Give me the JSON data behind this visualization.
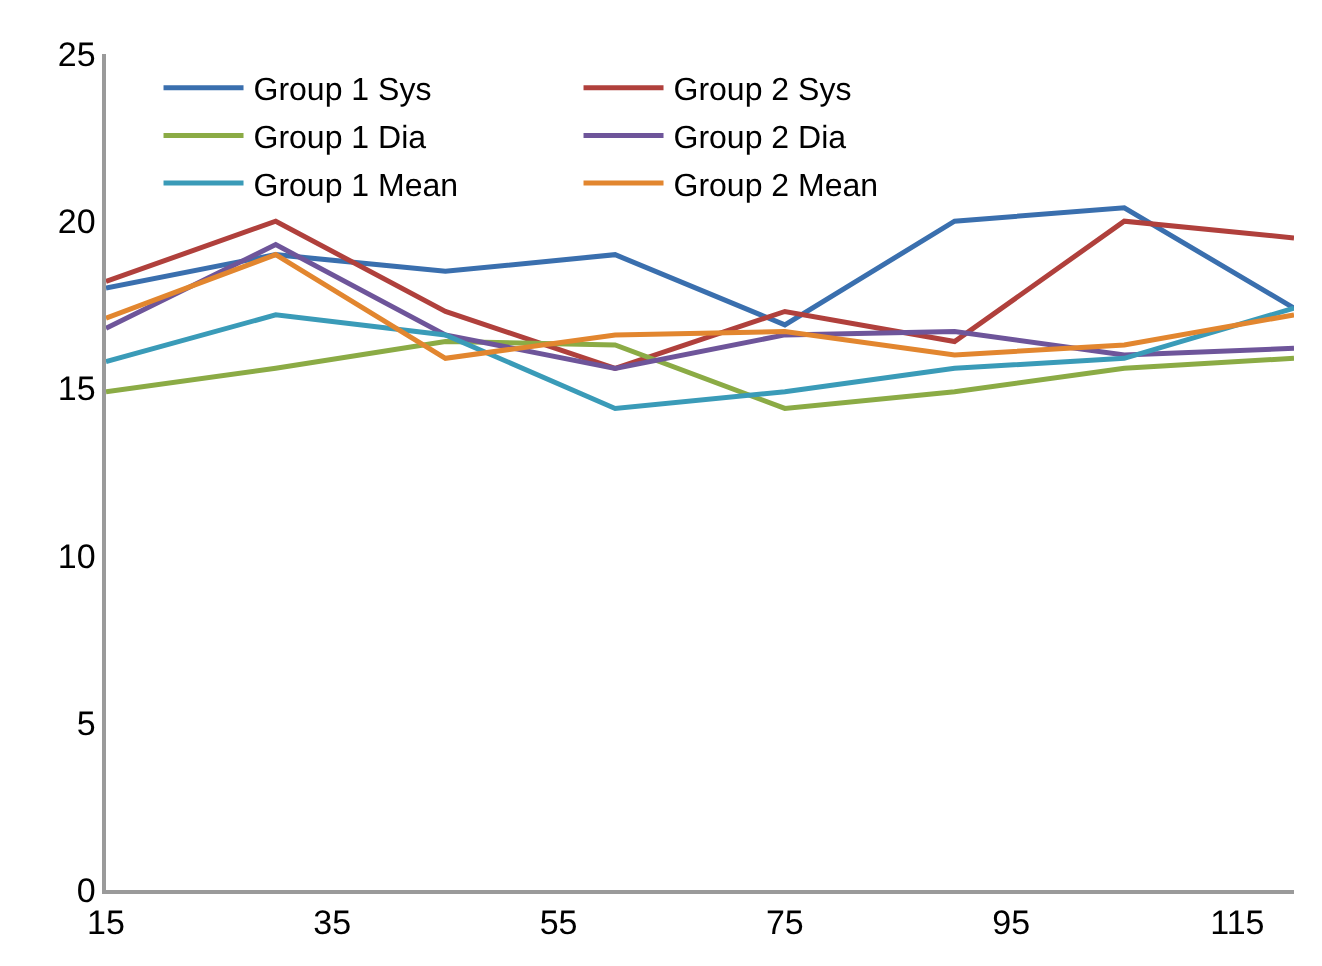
{
  "chart_data": {
    "type": "line",
    "x": [
      15,
      30,
      45,
      60,
      75,
      90,
      105,
      120
    ],
    "series": [
      {
        "name": "Group 1 Sys",
        "color": "#3a6fae",
        "values": [
          18.0,
          19.0,
          18.5,
          19.0,
          16.9,
          20.0,
          20.4,
          17.4
        ]
      },
      {
        "name": "Group 2 Sys",
        "color": "#b0403c",
        "values": [
          18.2,
          20.0,
          17.3,
          15.6,
          17.3,
          16.4,
          20.0,
          19.5
        ]
      },
      {
        "name": "Group 1 Dia",
        "color": "#8bab45",
        "values": [
          14.9,
          15.6,
          16.4,
          16.3,
          14.4,
          14.9,
          15.6,
          15.9
        ]
      },
      {
        "name": "Group 2 Dia",
        "color": "#6e559a",
        "values": [
          16.8,
          19.3,
          16.6,
          15.6,
          16.6,
          16.7,
          16.0,
          16.2
        ]
      },
      {
        "name": "Group 1 Mean",
        "color": "#3a9bb8",
        "values": [
          15.8,
          17.2,
          16.6,
          14.4,
          14.9,
          15.6,
          15.9,
          17.4
        ]
      },
      {
        "name": "Group 2 Mean",
        "color": "#e2862f",
        "values": [
          17.1,
          19.0,
          15.9,
          16.6,
          16.7,
          16.0,
          16.3,
          17.2
        ]
      }
    ],
    "xlim": [
      15,
      120
    ],
    "xticks": [
      15,
      35,
      55,
      75,
      95,
      115
    ],
    "ylim": [
      0,
      25
    ],
    "yticks": [
      0,
      5,
      10,
      15,
      20,
      25
    ],
    "grid": false,
    "legend": "top",
    "marker": "none",
    "line_style": "solid"
  }
}
